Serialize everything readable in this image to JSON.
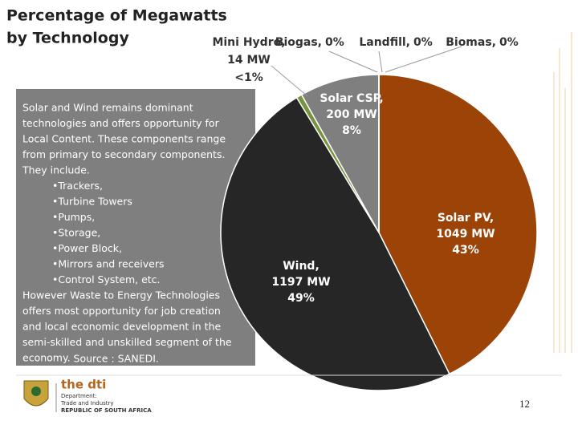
{
  "chart_data": {
    "type": "pie",
    "title": [
      "Percentage of Megawatts",
      "by Technology"
    ],
    "categories": [
      "Solar PV,",
      "Wind,",
      "Mini Hydro,",
      "Solar CSP,",
      "Biogas,",
      "Landfill,",
      "Biomas,"
    ],
    "values": [
      1049,
      1197,
      14,
      200,
      0,
      0,
      0
    ],
    "value_labels": [
      "1049 MW",
      "1197 MW",
      "14 MW",
      "200 MW",
      null,
      null,
      null
    ],
    "percent_labels": [
      "43%",
      "49%",
      "<1%",
      "8%",
      "0%",
      "0%",
      "0%"
    ],
    "colors": [
      "#9c4308",
      "#262626",
      "#77933c",
      "#7f7f7f",
      "#4f81bd",
      "#c0504d",
      "#8064a2"
    ]
  },
  "text_box": {
    "lines": [
      "Solar and Wind remains dominant",
      "technologies and offers opportunity for",
      "Local Content. These components range",
      "from  primary to secondary components.",
      "They include.",
      "•Trackers,",
      "•Turbine Towers",
      "•Pumps,",
      "•Storage,",
      "•Power Block,",
      "•Mirrors and receivers",
      "•Control System, etc.",
      "However Waste to Energy Technologies",
      "offers most opportunity for job creation",
      "and local economic development in the",
      "semi-skilled and unskilled segment  of the",
      "economy."
    ],
    "source": "Source : SANEDI."
  },
  "logo": {
    "name": "the dti",
    "lines": [
      "Department:",
      "Trade and Industry",
      "REPUBLIC OF SOUTH AFRICA"
    ]
  },
  "page_number": "12"
}
